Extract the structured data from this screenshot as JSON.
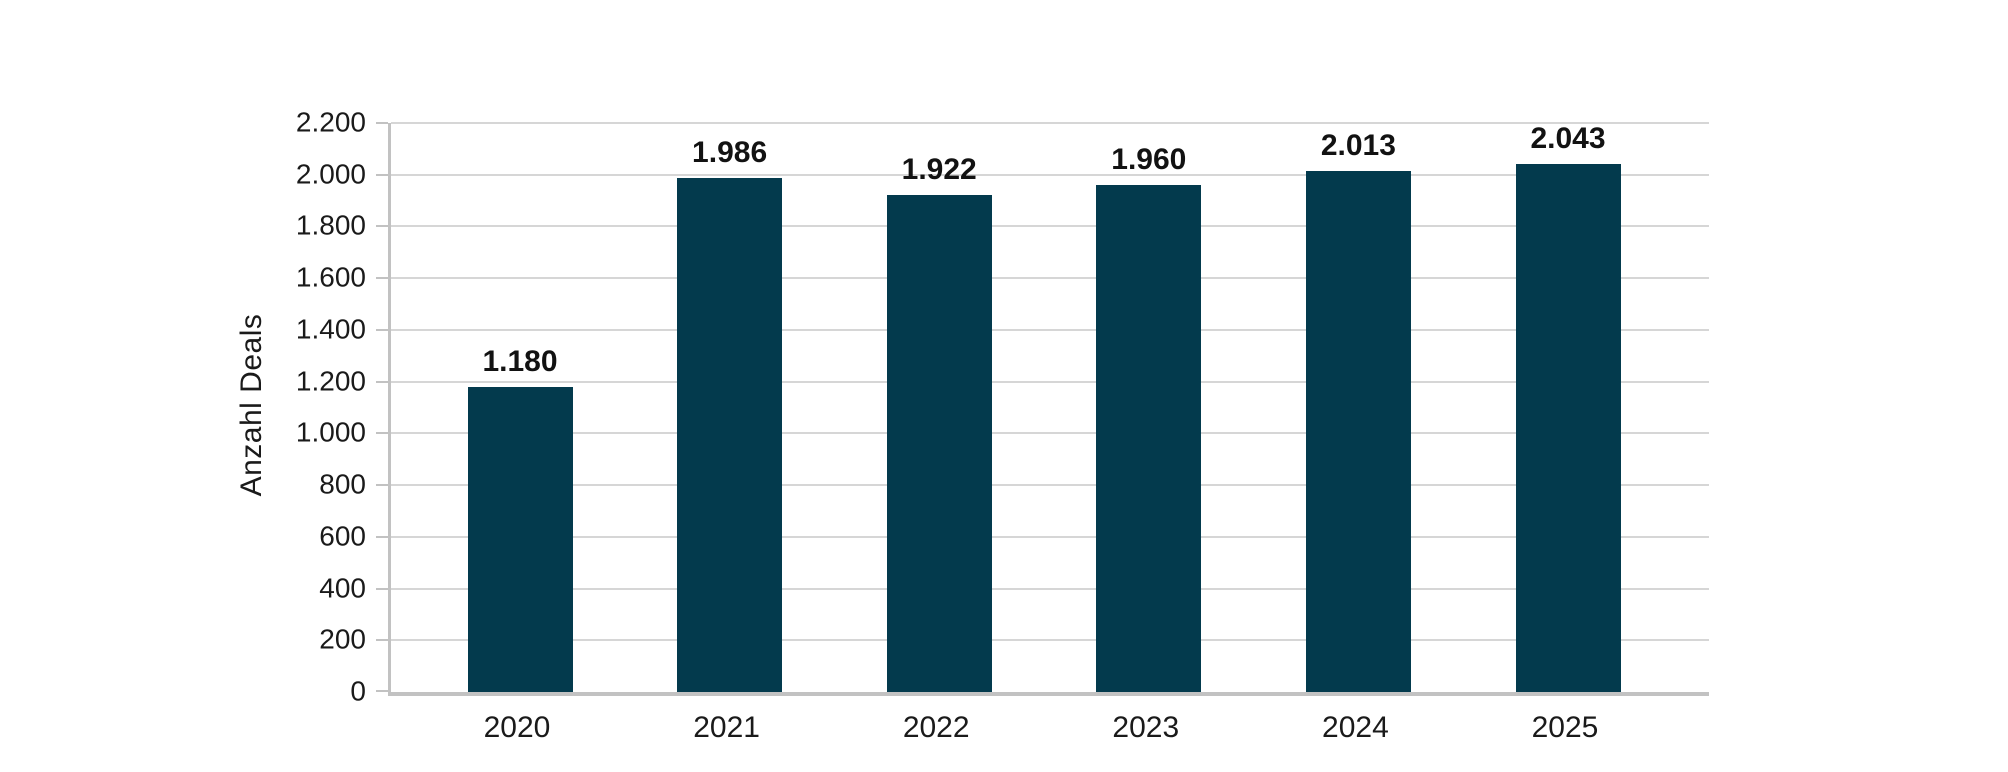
{
  "page": {
    "background": "#ffffff"
  },
  "chart_data": {
    "type": "bar",
    "title": "",
    "categories": [
      "2020",
      "2021",
      "2022",
      "2023",
      "2024",
      "2025"
    ],
    "values": [
      1180,
      1986,
      1922,
      1960,
      2013,
      2043
    ],
    "value_labels": [
      "1.180",
      "1.986",
      "1.922",
      "1.960",
      "2.013",
      "2.043"
    ],
    "xlabel": "",
    "ylabel": "Anzahl Deals",
    "ylim": [
      0,
      2200
    ],
    "ytick_step": 200,
    "ytick_labels": [
      "2.200",
      "2.000",
      "1.800",
      "1.600",
      "1.400",
      "1.200",
      "1.000",
      "800",
      "600",
      "400",
      "200",
      "0"
    ],
    "grid": true,
    "legend": "none",
    "bar_color": "#033a4d",
    "gridline_color": "#d6d6d6",
    "axis_line_color": "#c2c2c2",
    "text_color": "#1a1a1a"
  }
}
